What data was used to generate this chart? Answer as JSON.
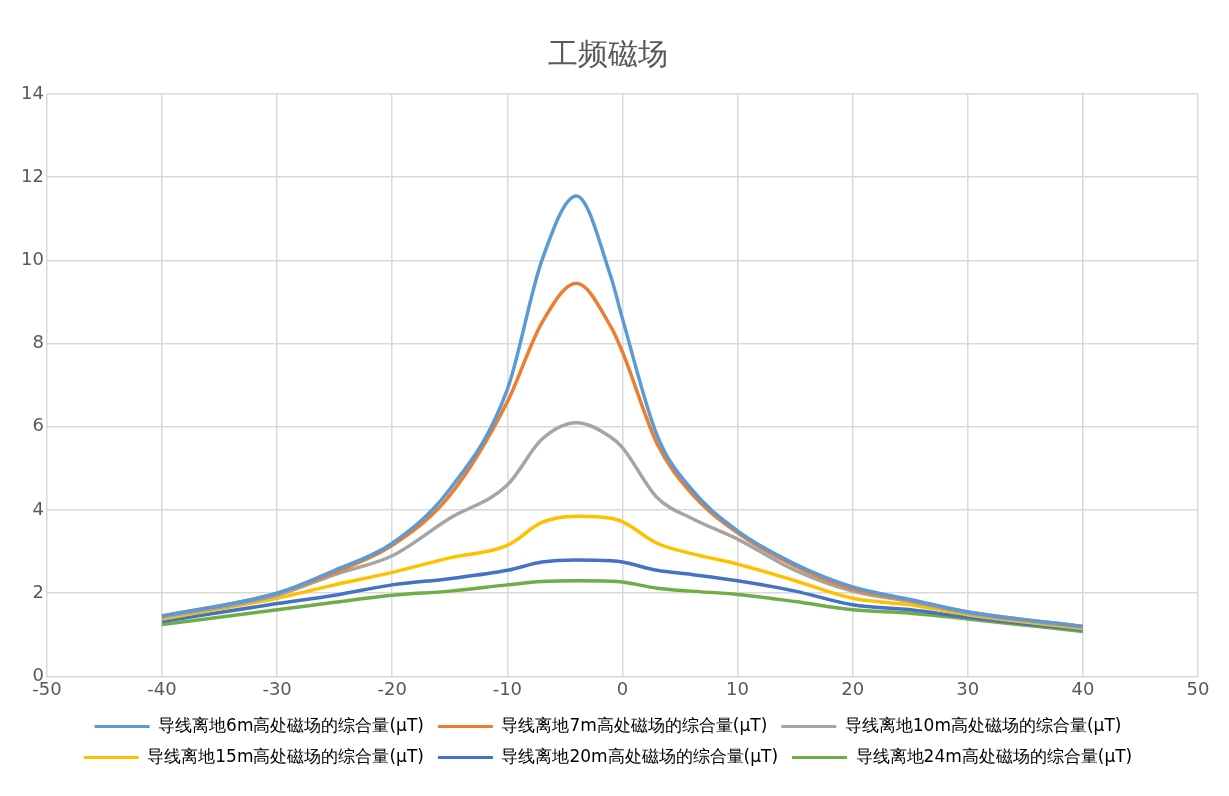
{
  "chart_data": {
    "type": "line",
    "title": "工频磁场",
    "x": [
      -40,
      -30,
      -25,
      -20,
      -15,
      -10,
      -7,
      -4,
      -1,
      0,
      3,
      6,
      10,
      15,
      20,
      25,
      30,
      40
    ],
    "xlim": [
      -50,
      50
    ],
    "xticks": [
      -50,
      -40,
      -30,
      -20,
      -10,
      0,
      10,
      20,
      30,
      40,
      50
    ],
    "ylim": [
      0,
      14
    ],
    "yticks": [
      0,
      2,
      4,
      6,
      8,
      10,
      12,
      14
    ],
    "grid": true,
    "legend": "bottom",
    "marker": "none",
    "line_style": "solid",
    "series": [
      {
        "name": "导线离地6m高处磁场的综合量(μT)",
        "color": "#5b9bd5",
        "values": [
          1.45,
          2.0,
          2.55,
          3.2,
          4.5,
          6.9,
          10.0,
          11.55,
          9.6,
          8.6,
          5.8,
          4.5,
          3.5,
          2.7,
          2.15,
          1.85,
          1.55,
          1.2
        ]
      },
      {
        "name": "导线离地7m高处磁场的综合量(μT)",
        "color": "#ed7d31",
        "values": [
          1.45,
          2.0,
          2.5,
          3.15,
          4.35,
          6.6,
          8.5,
          9.45,
          8.4,
          7.8,
          5.6,
          4.4,
          3.45,
          2.65,
          2.1,
          1.83,
          1.55,
          1.2
        ]
      },
      {
        "name": "导线离地10m高处磁场的综合量(μT)",
        "color": "#a5a5a5",
        "values": [
          1.42,
          1.95,
          2.45,
          2.9,
          3.8,
          4.6,
          5.7,
          6.1,
          5.75,
          5.5,
          4.3,
          3.8,
          3.3,
          2.55,
          2.05,
          1.8,
          1.52,
          1.18
        ]
      },
      {
        "name": "导线离地15m高处磁场的综合量(μT)",
        "color": "#ffc000",
        "values": [
          1.38,
          1.88,
          2.2,
          2.5,
          2.85,
          3.15,
          3.7,
          3.85,
          3.8,
          3.72,
          3.2,
          2.95,
          2.7,
          2.3,
          1.88,
          1.72,
          1.48,
          1.15
        ]
      },
      {
        "name": "导线离地20m高处磁场的综合量(μT)",
        "color": "#4472c4",
        "values": [
          1.32,
          1.75,
          1.95,
          2.2,
          2.35,
          2.55,
          2.75,
          2.8,
          2.78,
          2.75,
          2.55,
          2.45,
          2.3,
          2.05,
          1.72,
          1.6,
          1.42,
          1.12
        ]
      },
      {
        "name": "导线离地24m高处磁场的综合量(μT)",
        "color": "#70ad47",
        "values": [
          1.25,
          1.6,
          1.78,
          1.95,
          2.05,
          2.2,
          2.28,
          2.3,
          2.29,
          2.27,
          2.12,
          2.05,
          1.97,
          1.8,
          1.6,
          1.52,
          1.38,
          1.08
        ]
      }
    ]
  }
}
